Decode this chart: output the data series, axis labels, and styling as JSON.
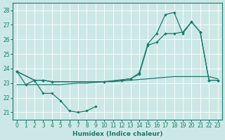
{
  "xlabel": "Humidex (Indice chaleur)",
  "xlim": [
    -0.5,
    23.5
  ],
  "ylim": [
    20.5,
    28.5
  ],
  "yticks": [
    21,
    22,
    23,
    24,
    25,
    26,
    27,
    28
  ],
  "xticks": [
    0,
    1,
    2,
    3,
    4,
    5,
    6,
    7,
    8,
    9,
    10,
    11,
    12,
    13,
    14,
    15,
    16,
    17,
    18,
    19,
    20,
    21,
    22,
    23
  ],
  "bg_color": "#cce8e6",
  "line_color": "#1a7a6e",
  "grid_color": "#ffffff",
  "line1_x": [
    0,
    1,
    2,
    3,
    4,
    5,
    6,
    7,
    8,
    9
  ],
  "line1_y": [
    23.8,
    22.9,
    23.2,
    22.3,
    22.3,
    21.8,
    21.1,
    21.0,
    21.1,
    21.4
  ],
  "line2_x": [
    0,
    1,
    2,
    3,
    4,
    5,
    6,
    7,
    8,
    9,
    10,
    11,
    12,
    13,
    14,
    15,
    16,
    17,
    18,
    19,
    20,
    21,
    22,
    23
  ],
  "line2_y": [
    22.9,
    22.9,
    22.9,
    22.9,
    22.9,
    22.9,
    22.95,
    23.0,
    23.0,
    23.05,
    23.1,
    23.1,
    23.15,
    23.2,
    23.25,
    23.3,
    23.35,
    23.4,
    23.45,
    23.45,
    23.45,
    23.45,
    23.45,
    23.3
  ],
  "line3_x": [
    0,
    2,
    3,
    4,
    10,
    12,
    13,
    14,
    15,
    16,
    17,
    18,
    19,
    20,
    21,
    22,
    23
  ],
  "line3_y": [
    23.8,
    23.2,
    23.2,
    23.1,
    23.1,
    23.2,
    23.3,
    23.6,
    25.6,
    25.8,
    26.4,
    26.4,
    26.5,
    27.2,
    26.5,
    23.2,
    23.2
  ],
  "line4_x": [
    0,
    2,
    3,
    4,
    10,
    13,
    14,
    15,
    16,
    17,
    18,
    19,
    20,
    21,
    22,
    23
  ],
  "line4_y": [
    23.8,
    23.2,
    23.2,
    23.1,
    23.1,
    23.3,
    23.7,
    25.7,
    26.4,
    27.7,
    27.85,
    26.4,
    27.2,
    26.5,
    23.2,
    23.2
  ]
}
